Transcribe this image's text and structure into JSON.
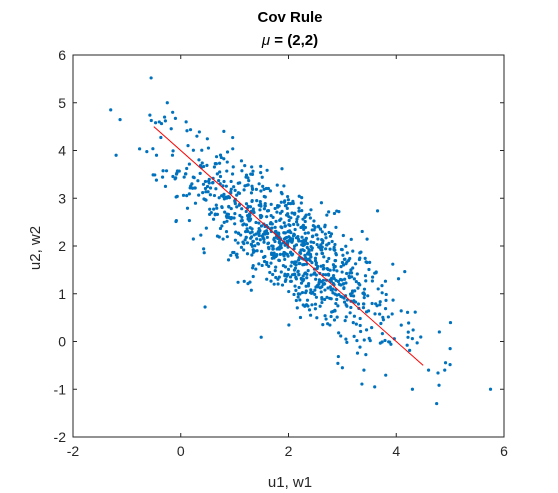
{
  "chart_data": {
    "type": "scatter",
    "title": "Cov Rule",
    "subtitle_symbol": "μ",
    "subtitle_rest": " = (2,2)",
    "xlabel": "u1, w1",
    "ylabel": "u2, w2",
    "xlim": [
      -2,
      6
    ],
    "ylim": [
      -2,
      6
    ],
    "xticks": [
      -2,
      0,
      2,
      4,
      6
    ],
    "yticks": [
      -2,
      -1,
      0,
      1,
      2,
      3,
      4,
      5,
      6
    ],
    "grid": false,
    "box": true,
    "colors": {
      "points": "#0072bd",
      "line": "#ff0000",
      "axes": "#262626"
    },
    "line": {
      "x": [
        -0.5,
        4.5
      ],
      "y": [
        4.5,
        -0.5
      ]
    },
    "distribution": {
      "count": 1000,
      "mean": [
        2,
        2
      ],
      "cov": [
        [
          1,
          -0.8
        ],
        [
          -0.8,
          1
        ]
      ]
    },
    "points_outliers": {
      "x": [
        -0.55,
        -1.3,
        -1.2,
        -0.25,
        -0.15,
        0.1,
        -0.45,
        5.75,
        4.75,
        4.6,
        4.3,
        4.9,
        5.0,
        3.6,
        3.4,
        0.3,
        -0.3,
        4.8,
        3.0,
        0.8
      ],
      "y": [
        5.52,
        4.85,
        3.9,
        5.0,
        4.8,
        4.6,
        3.9,
        -1.0,
        -1.3,
        -0.6,
        -1.0,
        -0.6,
        -0.15,
        -0.95,
        -0.6,
        4.3,
        4.7,
        0.2,
        -0.55,
        4.4
      ]
    }
  }
}
